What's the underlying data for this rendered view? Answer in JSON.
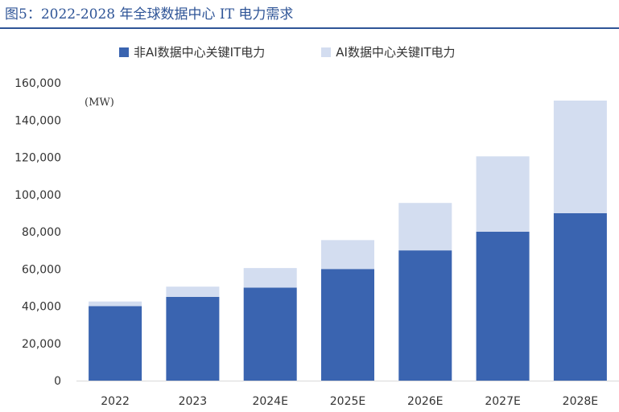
{
  "figure": {
    "title": "图5：2022-2028 年全球数据中心 IT 电力需求"
  },
  "chart_data": {
    "type": "bar",
    "stacked": true,
    "unit": "(MW)",
    "categories": [
      "2022",
      "2023",
      "2024E",
      "2025E",
      "2026E",
      "2027E",
      "2028E"
    ],
    "series": [
      {
        "name": "非AI数据中心关键IT电力",
        "color": "#3a64b0",
        "values": [
          40000,
          45000,
          50000,
          60000,
          70000,
          80000,
          90000
        ]
      },
      {
        "name": "AI数据中心关键IT电力",
        "color": "#d3ddf0",
        "values": [
          2500,
          5500,
          10500,
          15500,
          25500,
          40500,
          60500
        ]
      }
    ],
    "yticks": [
      "0",
      "20,000",
      "40,000",
      "60,000",
      "80,000",
      "100,000",
      "120,000",
      "140,000",
      "160,000"
    ],
    "ylim": [
      0,
      160000
    ],
    "grid": false,
    "legend_position": "top"
  }
}
